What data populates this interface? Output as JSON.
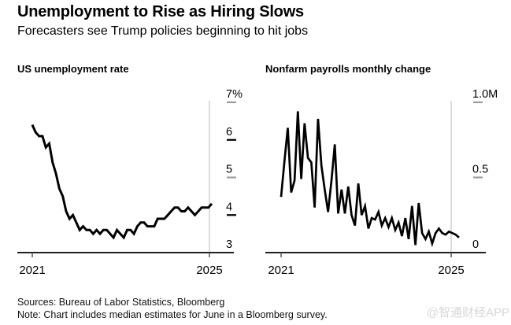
{
  "header": {
    "title": "Unemployment to Rise as Hiring Slows",
    "subtitle": "Forecasters see Trump policies beginning to hit jobs"
  },
  "chart_data": [
    {
      "type": "line",
      "title": "US unemployment rate",
      "unit": "percent",
      "frequency": "monthly",
      "x_start": "2021-01",
      "x_end": "2025-06",
      "x_tick_labels": [
        "2021",
        "2025"
      ],
      "ylim": [
        3,
        7
      ],
      "grid": "off",
      "legend": "none",
      "y_ticks": [
        {
          "label": "7%",
          "value": 7,
          "dash_color": "#9e9e9e"
        },
        {
          "label": "6",
          "value": 6,
          "dash_color": "#000000"
        },
        {
          "label": "5",
          "value": 5,
          "dash_color": "#9e9e9e"
        },
        {
          "label": "4",
          "value": 4,
          "dash_color": "#000000"
        },
        {
          "label": "3",
          "value": 3,
          "dash_color": null
        }
      ],
      "values": [
        6.4,
        6.2,
        6.1,
        6.1,
        5.8,
        5.9,
        5.4,
        5.1,
        4.7,
        4.5,
        4.1,
        3.9,
        4.0,
        3.8,
        3.6,
        3.7,
        3.6,
        3.6,
        3.5,
        3.6,
        3.5,
        3.6,
        3.6,
        3.5,
        3.4,
        3.6,
        3.5,
        3.4,
        3.6,
        3.6,
        3.5,
        3.7,
        3.8,
        3.8,
        3.7,
        3.7,
        3.7,
        3.9,
        3.9,
        3.9,
        4.0,
        4.1,
        4.2,
        4.2,
        4.1,
        4.1,
        4.2,
        4.1,
        4.0,
        4.1,
        4.2,
        4.2,
        4.2,
        4.3
      ]
    },
    {
      "type": "line",
      "title": "Nonfarm payrolls monthly change",
      "unit": "millions of jobs",
      "frequency": "monthly",
      "x_start": "2021-01",
      "x_end": "2025-06",
      "x_tick_labels": [
        "2021",
        "2025"
      ],
      "ylim": [
        0,
        1.0
      ],
      "grid": "off",
      "legend": "none",
      "y_ticks": [
        {
          "label": "1.0M",
          "value": 1.0,
          "dash_color": "#9e9e9e"
        },
        {
          "label": "0.5",
          "value": 0.5,
          "dash_color": "#9e9e9e"
        },
        {
          "label": "0",
          "value": 0,
          "dash_color": null
        }
      ],
      "values": [
        0.37,
        0.61,
        0.83,
        0.4,
        0.48,
        0.94,
        0.49,
        0.86,
        0.63,
        0.6,
        0.3,
        0.89,
        0.58,
        0.42,
        0.27,
        0.48,
        0.72,
        0.26,
        0.42,
        0.26,
        0.44,
        0.25,
        0.18,
        0.46,
        0.25,
        0.31,
        0.16,
        0.23,
        0.22,
        0.27,
        0.18,
        0.23,
        0.17,
        0.23,
        0.15,
        0.2,
        0.11,
        0.23,
        0.09,
        0.31,
        0.05,
        0.33,
        0.13,
        0.09,
        0.14,
        0.06,
        0.13,
        0.16,
        0.13,
        0.12,
        0.14,
        0.13,
        0.12,
        0.1
      ]
    }
  ],
  "footer": {
    "sources": "Sources: Bureau of Labor Statistics, Bloomberg",
    "note": "Note: Chart includes median estimates for June in a Bloomberg survey."
  },
  "watermark": "@智通财经APP",
  "colors": {
    "line": "#000000",
    "axis": "#000000",
    "x_tick": "#555555",
    "year_gridline": "#dcdcdc",
    "watermark": "#d7d7d7",
    "background": "#ffffff"
  }
}
